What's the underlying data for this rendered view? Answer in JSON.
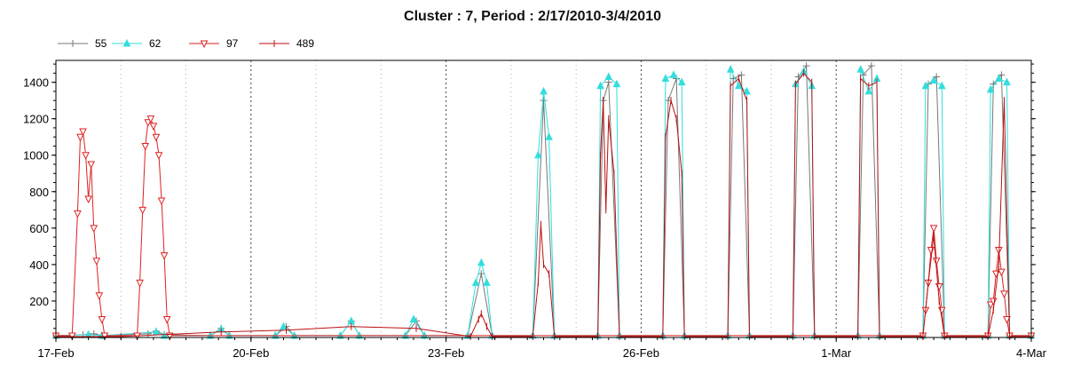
{
  "chart_data": {
    "type": "line",
    "title": "Cluster : 7, Period : 2/17/2010-3/4/2010",
    "xlabel": "",
    "ylabel": "",
    "x_ticks": [
      "17-Feb",
      "20-Feb",
      "23-Feb",
      "26-Feb",
      "1-Mar",
      "4-Mar"
    ],
    "x_range": [
      "2010-02-17",
      "2010-03-04"
    ],
    "ylim": [
      0,
      1520
    ],
    "y_ticks": [
      200,
      400,
      600,
      800,
      1000,
      1200,
      1400
    ],
    "grid": true,
    "legend_position": "top-left",
    "series": [
      {
        "name": "55",
        "color": "#777777",
        "marker": "plus",
        "points": [
          [
            "2010-02-17 00:00",
            10
          ],
          [
            "2010-02-17 10:00",
            15
          ],
          [
            "2010-02-17 14:00",
            20
          ],
          [
            "2010-02-17 17:00",
            10
          ],
          [
            "2010-02-18 10:00",
            20
          ],
          [
            "2010-02-18 13:00",
            35
          ],
          [
            "2010-02-18 16:00",
            15
          ],
          [
            "2010-02-19 09:00",
            10
          ],
          [
            "2010-02-19 13:00",
            50
          ],
          [
            "2010-02-19 16:00",
            10
          ],
          [
            "2010-02-20 09:00",
            10
          ],
          [
            "2010-02-20 13:00",
            60
          ],
          [
            "2010-02-20 16:00",
            10
          ],
          [
            "2010-02-21 09:00",
            10
          ],
          [
            "2010-02-21 13:00",
            90
          ],
          [
            "2010-02-21 16:00",
            10
          ],
          [
            "2010-02-22 09:00",
            10
          ],
          [
            "2010-02-22 13:00",
            90
          ],
          [
            "2010-02-22 16:00",
            10
          ],
          [
            "2010-02-23 08:00",
            10
          ],
          [
            "2010-02-23 13:00",
            350
          ],
          [
            "2010-02-23 17:00",
            10
          ],
          [
            "2010-02-24 08:00",
            10
          ],
          [
            "2010-02-24 12:00",
            1300
          ],
          [
            "2010-02-24 16:00",
            10
          ],
          [
            "2010-02-25 08:00",
            10
          ],
          [
            "2010-02-25 10:00",
            1300
          ],
          [
            "2010-02-25 12:00",
            1400
          ],
          [
            "2010-02-25 16:00",
            10
          ],
          [
            "2010-02-26 08:00",
            10
          ],
          [
            "2010-02-26 10:00",
            1300
          ],
          [
            "2010-02-26 13:00",
            1420
          ],
          [
            "2010-02-26 16:00",
            10
          ],
          [
            "2010-02-27 08:00",
            10
          ],
          [
            "2010-02-27 10:00",
            1420
          ],
          [
            "2010-02-27 13:00",
            1440
          ],
          [
            "2010-02-27 16:00",
            10
          ],
          [
            "2010-02-28 08:00",
            10
          ],
          [
            "2010-02-28 10:00",
            1430
          ],
          [
            "2010-02-28 13:00",
            1490
          ],
          [
            "2010-02-28 16:00",
            10
          ],
          [
            "2010-03-01 08:00",
            10
          ],
          [
            "2010-03-01 10:00",
            1440
          ],
          [
            "2010-03-01 13:00",
            1490
          ],
          [
            "2010-03-01 16:00",
            10
          ],
          [
            "2010-03-02 08:00",
            10
          ],
          [
            "2010-03-02 10:00",
            1390
          ],
          [
            "2010-03-02 13:00",
            1430
          ],
          [
            "2010-03-02 16:00",
            10
          ],
          [
            "2010-03-03 08:00",
            10
          ],
          [
            "2010-03-03 10:00",
            1390
          ],
          [
            "2010-03-03 13:00",
            1440
          ],
          [
            "2010-03-03 16:00",
            10
          ],
          [
            "2010-03-04 00:00",
            10
          ]
        ]
      },
      {
        "name": "62",
        "color": "#33dddd",
        "marker": "triangle-up",
        "points": [
          [
            "2010-02-17 00:00",
            10
          ],
          [
            "2010-02-17 12:00",
            15
          ],
          [
            "2010-02-17 17:00",
            10
          ],
          [
            "2010-02-18 13:00",
            30
          ],
          [
            "2010-02-18 16:00",
            10
          ],
          [
            "2010-02-19 09:00",
            10
          ],
          [
            "2010-02-19 13:00",
            45
          ],
          [
            "2010-02-19 16:00",
            10
          ],
          [
            "2010-02-20 09:00",
            10
          ],
          [
            "2010-02-20 12:00",
            60
          ],
          [
            "2010-02-20 16:00",
            10
          ],
          [
            "2010-02-21 09:00",
            10
          ],
          [
            "2010-02-21 13:00",
            90
          ],
          [
            "2010-02-21 16:00",
            10
          ],
          [
            "2010-02-22 09:00",
            10
          ],
          [
            "2010-02-22 12:00",
            100
          ],
          [
            "2010-02-22 16:00",
            10
          ],
          [
            "2010-02-23 08:00",
            10
          ],
          [
            "2010-02-23 11:00",
            300
          ],
          [
            "2010-02-23 13:00",
            410
          ],
          [
            "2010-02-23 15:00",
            300
          ],
          [
            "2010-02-23 17:00",
            10
          ],
          [
            "2010-02-24 08:00",
            10
          ],
          [
            "2010-02-24 10:00",
            1000
          ],
          [
            "2010-02-24 12:00",
            1350
          ],
          [
            "2010-02-24 14:00",
            1100
          ],
          [
            "2010-02-24 16:00",
            10
          ],
          [
            "2010-02-25 08:00",
            10
          ],
          [
            "2010-02-25 09:00",
            1380
          ],
          [
            "2010-02-25 12:00",
            1430
          ],
          [
            "2010-02-25 15:00",
            1390
          ],
          [
            "2010-02-25 16:00",
            10
          ],
          [
            "2010-02-26 08:00",
            10
          ],
          [
            "2010-02-26 09:00",
            1420
          ],
          [
            "2010-02-26 12:00",
            1440
          ],
          [
            "2010-02-26 15:00",
            1400
          ],
          [
            "2010-02-26 16:00",
            10
          ],
          [
            "2010-02-27 08:00",
            10
          ],
          [
            "2010-02-27 09:00",
            1470
          ],
          [
            "2010-02-27 12:00",
            1380
          ],
          [
            "2010-02-27 15:00",
            1350
          ],
          [
            "2010-02-27 16:00",
            10
          ],
          [
            "2010-02-28 08:00",
            10
          ],
          [
            "2010-02-28 09:00",
            1390
          ],
          [
            "2010-02-28 12:00",
            1460
          ],
          [
            "2010-02-28 15:00",
            1380
          ],
          [
            "2010-02-28 16:00",
            10
          ],
          [
            "2010-03-01 08:00",
            10
          ],
          [
            "2010-03-01 09:00",
            1470
          ],
          [
            "2010-03-01 12:00",
            1350
          ],
          [
            "2010-03-01 15:00",
            1420
          ],
          [
            "2010-03-01 16:00",
            10
          ],
          [
            "2010-03-02 08:00",
            10
          ],
          [
            "2010-03-02 09:00",
            1380
          ],
          [
            "2010-03-02 12:00",
            1410
          ],
          [
            "2010-03-02 15:00",
            1380
          ],
          [
            "2010-03-02 16:00",
            10
          ],
          [
            "2010-03-03 08:00",
            10
          ],
          [
            "2010-03-03 09:00",
            1360
          ],
          [
            "2010-03-03 12:00",
            1420
          ],
          [
            "2010-03-03 15:00",
            1400
          ],
          [
            "2010-03-03 16:00",
            10
          ],
          [
            "2010-03-04 00:00",
            10
          ]
        ]
      },
      {
        "name": "97",
        "color": "#dd2222",
        "marker": "triangle-down",
        "points": [
          [
            "2010-02-17 00:00",
            10
          ],
          [
            "2010-02-17 06:00",
            10
          ],
          [
            "2010-02-17 08:00",
            680
          ],
          [
            "2010-02-17 09:00",
            1100
          ],
          [
            "2010-02-17 10:00",
            1130
          ],
          [
            "2010-02-17 11:00",
            1000
          ],
          [
            "2010-02-17 12:00",
            760
          ],
          [
            "2010-02-17 13:00",
            950
          ],
          [
            "2010-02-17 14:00",
            600
          ],
          [
            "2010-02-17 15:00",
            420
          ],
          [
            "2010-02-17 16:00",
            230
          ],
          [
            "2010-02-17 17:00",
            100
          ],
          [
            "2010-02-17 18:00",
            10
          ],
          [
            "2010-02-18 06:00",
            10
          ],
          [
            "2010-02-18 07:00",
            300
          ],
          [
            "2010-02-18 08:00",
            700
          ],
          [
            "2010-02-18 09:00",
            1050
          ],
          [
            "2010-02-18 10:00",
            1180
          ],
          [
            "2010-02-18 11:00",
            1200
          ],
          [
            "2010-02-18 12:00",
            1160
          ],
          [
            "2010-02-18 13:00",
            1100
          ],
          [
            "2010-02-18 14:00",
            1000
          ],
          [
            "2010-02-18 15:00",
            750
          ],
          [
            "2010-02-18 16:00",
            450
          ],
          [
            "2010-02-18 17:00",
            100
          ],
          [
            "2010-02-18 18:00",
            10
          ],
          [
            "2010-03-02 08:00",
            10
          ],
          [
            "2010-03-02 09:00",
            150
          ],
          [
            "2010-03-02 10:00",
            300
          ],
          [
            "2010-03-02 11:00",
            480
          ],
          [
            "2010-03-02 12:00",
            600
          ],
          [
            "2010-03-02 13:00",
            420
          ],
          [
            "2010-03-02 14:00",
            280
          ],
          [
            "2010-03-02 15:00",
            150
          ],
          [
            "2010-03-02 16:00",
            10
          ],
          [
            "2010-03-03 08:00",
            10
          ],
          [
            "2010-03-03 09:00",
            180
          ],
          [
            "2010-03-03 10:00",
            200
          ],
          [
            "2010-03-03 11:00",
            350
          ],
          [
            "2010-03-03 12:00",
            480
          ],
          [
            "2010-03-03 13:00",
            360
          ],
          [
            "2010-03-03 14:00",
            240
          ],
          [
            "2010-03-03 15:00",
            100
          ],
          [
            "2010-03-03 16:00",
            10
          ],
          [
            "2010-03-04 00:00",
            10
          ]
        ]
      },
      {
        "name": "489",
        "color": "#bb1111",
        "marker": "tick",
        "points": [
          [
            "2010-02-17 00:00",
            5
          ],
          [
            "2010-02-18 00:00",
            5
          ],
          [
            "2010-02-19 13:00",
            30
          ],
          [
            "2010-02-20 13:00",
            40
          ],
          [
            "2010-02-21 13:00",
            60
          ],
          [
            "2010-02-22 13:00",
            50
          ],
          [
            "2010-02-23 09:00",
            5
          ],
          [
            "2010-02-23 12:00",
            100
          ],
          [
            "2010-02-23 13:00",
            130
          ],
          [
            "2010-02-23 15:00",
            60
          ],
          [
            "2010-02-23 17:00",
            5
          ],
          [
            "2010-02-24 08:00",
            5
          ],
          [
            "2010-02-24 10:00",
            300
          ],
          [
            "2010-02-24 11:00",
            620
          ],
          [
            "2010-02-24 12:00",
            400
          ],
          [
            "2010-02-24 14:00",
            350
          ],
          [
            "2010-02-24 16:00",
            5
          ],
          [
            "2010-02-25 08:00",
            5
          ],
          [
            "2010-02-25 09:00",
            1000
          ],
          [
            "2010-02-25 10:00",
            1300
          ],
          [
            "2010-02-25 11:00",
            700
          ],
          [
            "2010-02-25 12:00",
            1200
          ],
          [
            "2010-02-25 14:00",
            900
          ],
          [
            "2010-02-25 16:00",
            5
          ],
          [
            "2010-02-26 08:00",
            5
          ],
          [
            "2010-02-26 09:00",
            1100
          ],
          [
            "2010-02-26 11:00",
            1300
          ],
          [
            "2010-02-26 13:00",
            1200
          ],
          [
            "2010-02-26 15:00",
            900
          ],
          [
            "2010-02-26 16:00",
            5
          ],
          [
            "2010-02-27 08:00",
            5
          ],
          [
            "2010-02-27 09:00",
            1380
          ],
          [
            "2010-02-27 12:00",
            1420
          ],
          [
            "2010-02-27 15:00",
            1300
          ],
          [
            "2010-02-27 16:00",
            5
          ],
          [
            "2010-02-28 08:00",
            5
          ],
          [
            "2010-02-28 09:00",
            1390
          ],
          [
            "2010-02-28 12:00",
            1450
          ],
          [
            "2010-02-28 15:00",
            1400
          ],
          [
            "2010-02-28 16:00",
            5
          ],
          [
            "2010-03-01 08:00",
            5
          ],
          [
            "2010-03-01 09:00",
            1420
          ],
          [
            "2010-03-01 12:00",
            1380
          ],
          [
            "2010-03-01 15:00",
            1400
          ],
          [
            "2010-03-01 16:00",
            5
          ],
          [
            "2010-03-02 08:00",
            5
          ],
          [
            "2010-03-02 10:00",
            300
          ],
          [
            "2010-03-02 12:00",
            560
          ],
          [
            "2010-03-02 14:00",
            200
          ],
          [
            "2010-03-02 16:00",
            5
          ],
          [
            "2010-03-03 08:00",
            5
          ],
          [
            "2010-03-03 10:00",
            150
          ],
          [
            "2010-03-03 12:00",
            400
          ],
          [
            "2010-03-03 14:00",
            1300
          ],
          [
            "2010-03-03 16:00",
            5
          ],
          [
            "2010-03-04 00:00",
            5
          ]
        ]
      }
    ]
  }
}
